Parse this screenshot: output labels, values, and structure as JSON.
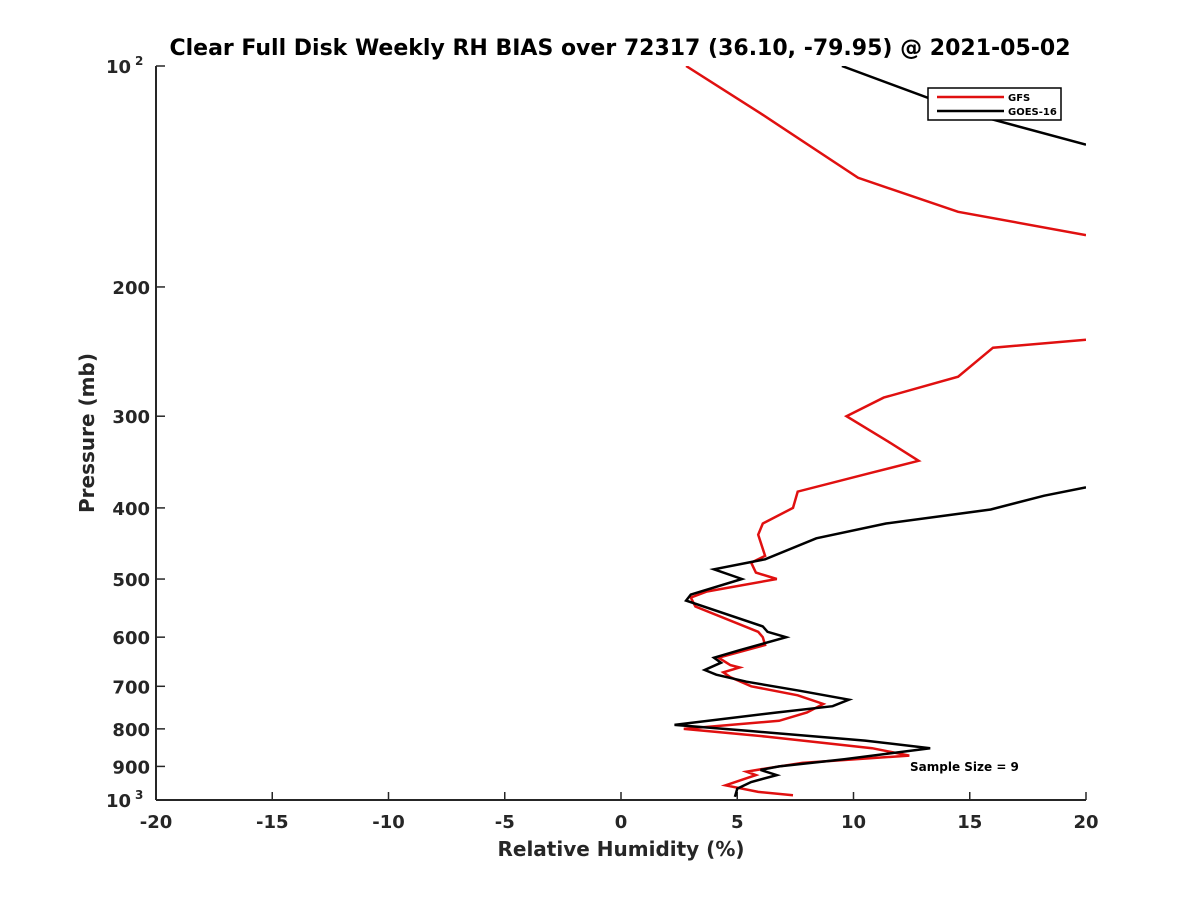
{
  "chart_data": {
    "type": "line",
    "title": "Clear Full Disk Weekly RH BIAS over 72317 (36.10, -79.95) @ 2021-05-02",
    "xlabel": "Relative Humidity (%)",
    "ylabel": "Pressure (mb)",
    "xlim": [
      -20,
      20
    ],
    "ylim": [
      100,
      1000
    ],
    "y_scale": "log",
    "y_reversed": true,
    "x_ticks": [
      "-20",
      "-15",
      "-10",
      "-5",
      "0",
      "5",
      "10",
      "15",
      "20"
    ],
    "y_ticks": [
      {
        "value": 100,
        "label": "10",
        "exp": "2"
      },
      {
        "value": 200,
        "label": "200",
        "exp": ""
      },
      {
        "value": 300,
        "label": "300",
        "exp": ""
      },
      {
        "value": 400,
        "label": "400",
        "exp": ""
      },
      {
        "value": 500,
        "label": "500",
        "exp": ""
      },
      {
        "value": 600,
        "label": "600",
        "exp": ""
      },
      {
        "value": 700,
        "label": "700",
        "exp": ""
      },
      {
        "value": 800,
        "label": "800",
        "exp": ""
      },
      {
        "value": 900,
        "label": "900",
        "exp": ""
      },
      {
        "value": 1000,
        "label": "10",
        "exp": "3"
      }
    ],
    "grid": false,
    "legend_position": "top-right",
    "annotation": "Sample Size = 9",
    "series": [
      {
        "name": "GFS",
        "color": "#e01010",
        "points": [
          [
            2.8,
            100
          ],
          [
            6.0,
            116
          ],
          [
            10.2,
            142
          ],
          [
            14.5,
            158
          ],
          [
            20.0,
            170
          ],
          [
            null,
            null
          ],
          [
            20.0,
            236
          ],
          [
            16.0,
            242
          ],
          [
            14.5,
            265
          ],
          [
            11.3,
            283
          ],
          [
            9.7,
            300
          ],
          [
            11.5,
            325
          ],
          [
            12.8,
            345
          ],
          [
            10.8,
            358
          ],
          [
            7.6,
            380
          ],
          [
            7.4,
            400
          ],
          [
            6.1,
            420
          ],
          [
            5.9,
            435
          ],
          [
            6.2,
            465
          ],
          [
            5.6,
            475
          ],
          [
            5.8,
            490
          ],
          [
            6.7,
            500
          ],
          [
            3.7,
            520
          ],
          [
            3.0,
            530
          ],
          [
            3.2,
            545
          ],
          [
            5.9,
            590
          ],
          [
            6.1,
            600
          ],
          [
            6.2,
            615
          ],
          [
            4.2,
            640
          ],
          [
            4.7,
            655
          ],
          [
            5.1,
            660
          ],
          [
            4.4,
            670
          ],
          [
            4.7,
            680
          ],
          [
            5.6,
            700
          ],
          [
            7.6,
            720
          ],
          [
            8.7,
            740
          ],
          [
            8.0,
            760
          ],
          [
            6.8,
            780
          ],
          [
            2.7,
            800
          ],
          [
            6.3,
            820
          ],
          [
            10.8,
            850
          ],
          [
            12.4,
            870
          ],
          [
            7.8,
            890
          ],
          [
            6.3,
            905
          ],
          [
            5.4,
            915
          ],
          [
            5.8,
            925
          ],
          [
            4.5,
            955
          ],
          [
            5.9,
            975
          ],
          [
            7.4,
            985
          ]
        ]
      },
      {
        "name": "GOES-16",
        "color": "#000000",
        "points": [
          [
            9.5,
            100
          ],
          [
            15.0,
            116
          ],
          [
            20.0,
            128
          ],
          [
            null,
            null
          ],
          [
            20.0,
            375
          ],
          [
            18.2,
            385
          ],
          [
            15.9,
            402
          ],
          [
            11.4,
            420
          ],
          [
            8.4,
            440
          ],
          [
            6.2,
            470
          ],
          [
            4.0,
            485
          ],
          [
            5.2,
            500
          ],
          [
            3.0,
            525
          ],
          [
            2.8,
            535
          ],
          [
            6.1,
            580
          ],
          [
            6.3,
            590
          ],
          [
            7.1,
            600
          ],
          [
            5.1,
            625
          ],
          [
            4.0,
            640
          ],
          [
            4.3,
            650
          ],
          [
            3.6,
            665
          ],
          [
            4.1,
            675
          ],
          [
            5.4,
            690
          ],
          [
            7.7,
            710
          ],
          [
            9.8,
            730
          ],
          [
            9.1,
            745
          ],
          [
            6.7,
            760
          ],
          [
            2.3,
            790
          ],
          [
            5.5,
            805
          ],
          [
            10.5,
            830
          ],
          [
            13.3,
            850
          ],
          [
            9.6,
            880
          ],
          [
            6.8,
            900
          ],
          [
            6.0,
            910
          ],
          [
            6.7,
            925
          ],
          [
            5.6,
            945
          ],
          [
            5.0,
            965
          ],
          [
            4.9,
            990
          ]
        ]
      }
    ]
  }
}
